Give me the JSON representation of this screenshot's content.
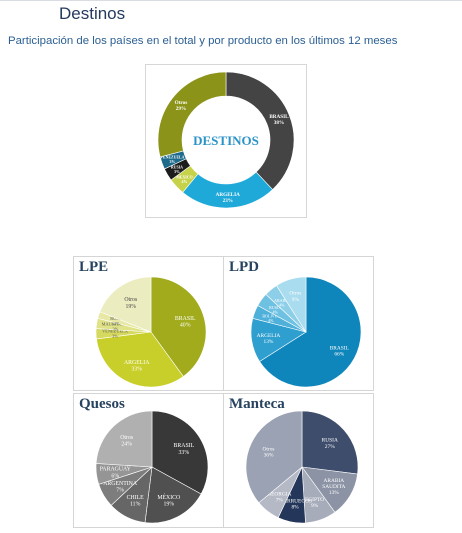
{
  "page": {
    "title": "Destinos",
    "subtitle": "Participación de los países en el total y por producto en los últimos 12 meses"
  },
  "chart_data": [
    {
      "id": "destinos",
      "type": "donut",
      "title": "DESTINOS",
      "center_label": "DESTINOS",
      "slices": [
        {
          "label": "BRASIL",
          "value": 38,
          "color": "#444444",
          "text_color": "#ffffff"
        },
        {
          "label": "ARGELIA",
          "value": 23,
          "color": "#1fa9d9",
          "text_color": "#ffffff"
        },
        {
          "label": "MEXICO",
          "value": 4,
          "color": "#c5d24a",
          "text_color": "#ffffff"
        },
        {
          "label": "RUSIA",
          "value": 3,
          "color": "#1c1c1c",
          "text_color": "#ffffff"
        },
        {
          "label": "VENEZUELA",
          "value": 3,
          "color": "#1e6a8a",
          "text_color": "#ffffff"
        },
        {
          "label": "Otros",
          "value": 29,
          "color": "#8b9419",
          "text_color": "#ffffff"
        }
      ]
    },
    {
      "id": "lpe",
      "type": "pie",
      "title": "LPE",
      "slices": [
        {
          "label": "BRASIL",
          "value": 40,
          "color": "#a1ab1c",
          "text_color": "#ffffff"
        },
        {
          "label": "ARGELIA",
          "value": 33,
          "color": "#c9cf2a",
          "text_color": "#ffffff"
        },
        {
          "label": "VENEZUELA",
          "value": 3,
          "color": "#d6d95f",
          "text_color": "#555555"
        },
        {
          "label": "MAURITANIA",
          "value": 3,
          "color": "#dfe287",
          "text_color": "#555555"
        },
        {
          "label": "RUSIA",
          "value": 2,
          "color": "#e6e8a3",
          "text_color": "#555555"
        },
        {
          "label": "Otros",
          "value": 19,
          "color": "#ebedc0",
          "text_color": "#444444"
        }
      ]
    },
    {
      "id": "lpd",
      "type": "pie",
      "title": "LPD",
      "slices": [
        {
          "label": "BRASIL",
          "value": 66,
          "color": "#0f86bb",
          "text_color": "#ffffff"
        },
        {
          "label": "ARGELIA",
          "value": 13,
          "color": "#2f9fcf",
          "text_color": "#ffffff"
        },
        {
          "label": "BOLIVIA",
          "value": 4,
          "color": "#4fb1da",
          "text_color": "#ffffff"
        },
        {
          "label": "RUSIA",
          "value": 4,
          "color": "#6fc1e2",
          "text_color": "#ffffff"
        },
        {
          "label": "ARABIA",
          "value": 4,
          "color": "#8dcfe9",
          "text_color": "#ffffff"
        },
        {
          "label": "Otros",
          "value": 9,
          "color": "#a9dcef",
          "text_color": "#ffffff"
        }
      ]
    },
    {
      "id": "quesos",
      "type": "pie",
      "title": "Quesos",
      "slices": [
        {
          "label": "BRASIL",
          "value": 33,
          "color": "#383838",
          "text_color": "#ffffff"
        },
        {
          "label": "MÉXICO",
          "value": 19,
          "color": "#505050",
          "text_color": "#ffffff"
        },
        {
          "label": "CHILE",
          "value": 11,
          "color": "#666666",
          "text_color": "#ffffff"
        },
        {
          "label": "ARGENTINA",
          "value": 7,
          "color": "#7d7d7d",
          "text_color": "#ffffff"
        },
        {
          "label": "PARAGUAY",
          "value": 6,
          "color": "#959595",
          "text_color": "#ffffff"
        },
        {
          "label": "Otros",
          "value": 24,
          "color": "#b0b0b0",
          "text_color": "#ffffff"
        }
      ]
    },
    {
      "id": "manteca",
      "type": "pie",
      "title": "Manteca",
      "slices": [
        {
          "label": "RUSIA",
          "value": 27,
          "color": "#3f4d6d",
          "text_color": "#ffffff"
        },
        {
          "label": "ARABIA SAUDITA",
          "value": 13,
          "color": "#8c93a5",
          "text_color": "#ffffff"
        },
        {
          "label": "EGIPTO",
          "value": 9,
          "color": "#a7acba",
          "text_color": "#ffffff"
        },
        {
          "label": "MARRUECOS",
          "value": 8,
          "color": "#243659",
          "text_color": "#ffffff"
        },
        {
          "label": "GEORGIA",
          "value": 7,
          "color": "#b4b9c5",
          "text_color": "#ffffff"
        },
        {
          "label": "Otros",
          "value": 36,
          "color": "#9aa2b3",
          "text_color": "#ffffff"
        }
      ]
    }
  ]
}
